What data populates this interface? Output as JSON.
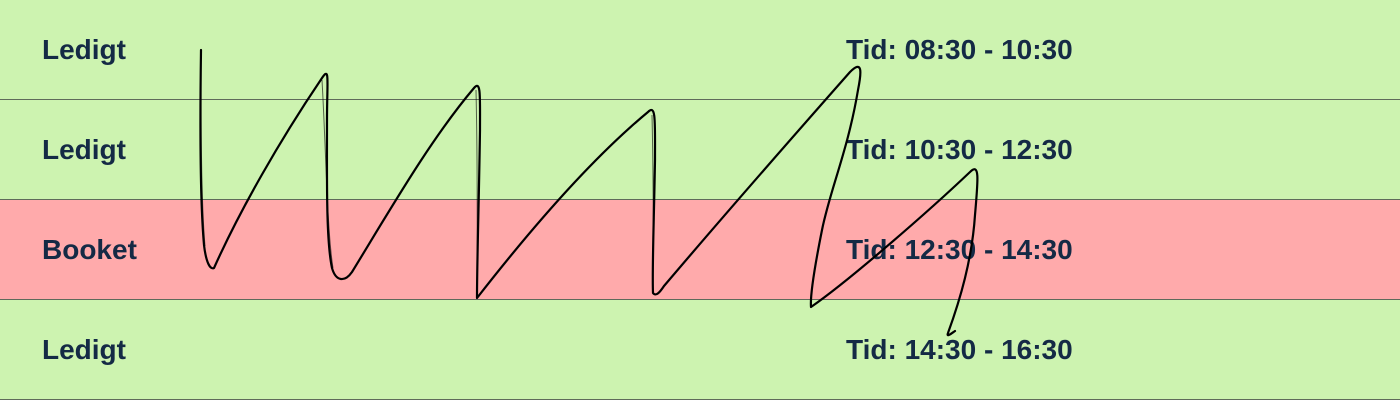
{
  "slots": [
    {
      "status": "Ledigt",
      "time": "Tid: 08:30 - 10:30",
      "state": "available"
    },
    {
      "status": "Ledigt",
      "time": "Tid: 10:30 - 12:30",
      "state": "available"
    },
    {
      "status": "Booket",
      "time": "Tid: 12:30 - 14:30",
      "state": "booked"
    },
    {
      "status": "Ledigt",
      "time": "Tid: 14:30 - 16:30",
      "state": "available"
    }
  ],
  "colors": {
    "available": "#cdf3b0",
    "booked": "#ffaaab",
    "text": "#142a45",
    "divider": "#5f6a5a",
    "scribble": "#000000"
  }
}
